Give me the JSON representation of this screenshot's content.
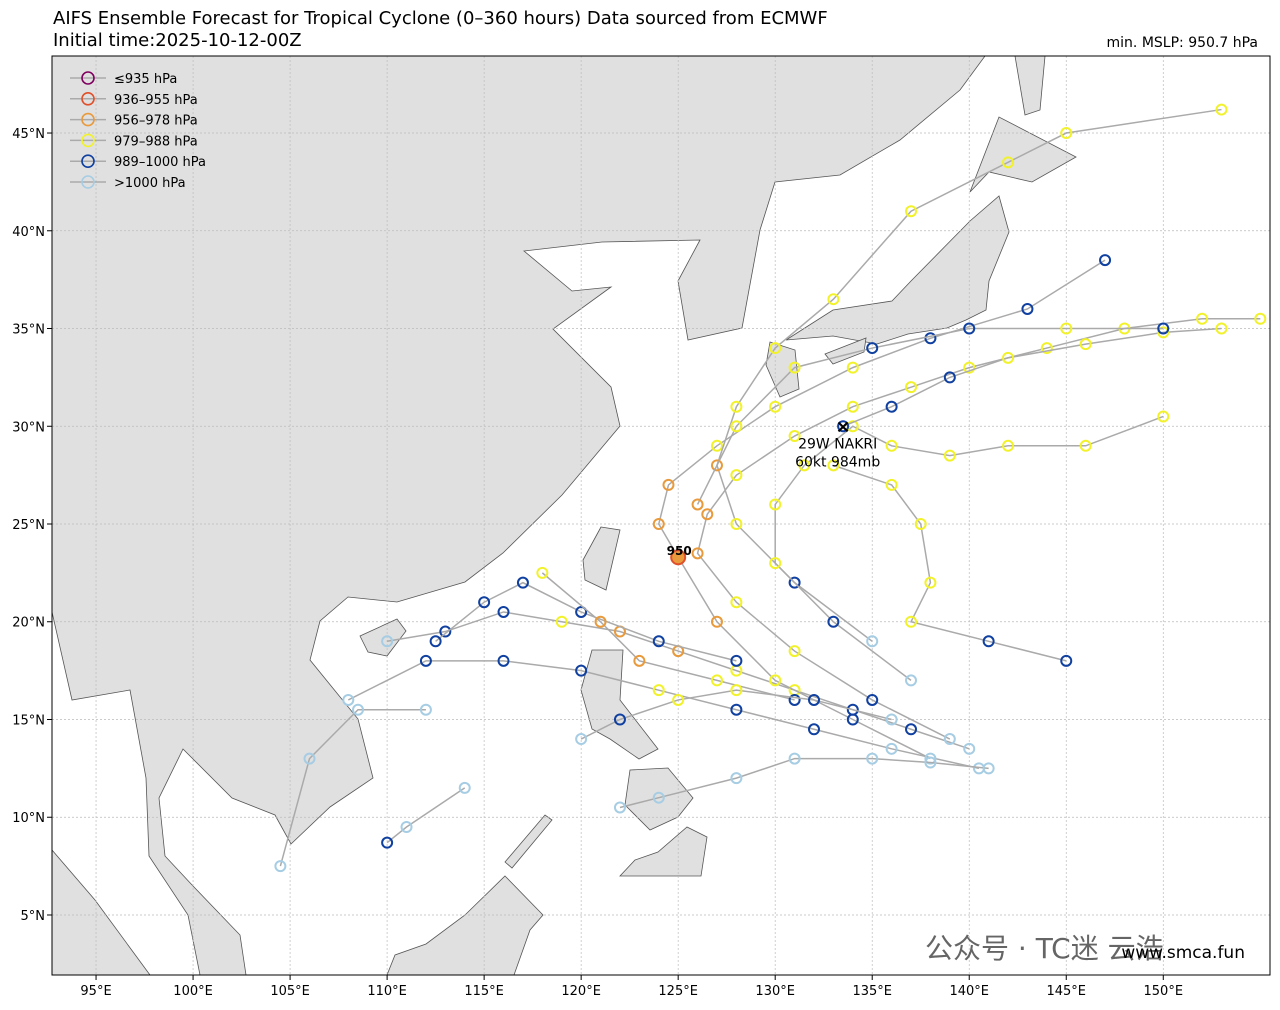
{
  "chart_data": {
    "type": "track",
    "title": "AIFS Ensemble Forecast for Tropical Cyclone (0–360 hours) Data sourced from ECMWF",
    "subtitle": "Initial time:2025-10-12-00Z",
    "min_mslp": "min. MSLP: 950.7 hPa",
    "xlim": [
      92.73,
      155.5
    ],
    "ylim": [
      1.93,
      48.94
    ],
    "xticks": [
      {
        "value": 95,
        "label": "95°E"
      },
      {
        "value": 100,
        "label": "100°E"
      },
      {
        "value": 105,
        "label": "105°E"
      },
      {
        "value": 110,
        "label": "110°E"
      },
      {
        "value": 115,
        "label": "115°E"
      },
      {
        "value": 120,
        "label": "120°E"
      },
      {
        "value": 125,
        "label": "125°E"
      },
      {
        "value": 130,
        "label": "130°E"
      },
      {
        "value": 135,
        "label": "135°E"
      },
      {
        "value": 140,
        "label": "140°E"
      },
      {
        "value": 145,
        "label": "145°E"
      },
      {
        "value": 150,
        "label": "150°E"
      }
    ],
    "yticks": [
      {
        "value": 5,
        "label": "5°N"
      },
      {
        "value": 10,
        "label": "10°N"
      },
      {
        "value": 15,
        "label": "15°N"
      },
      {
        "value": 20,
        "label": "20°N"
      },
      {
        "value": 25,
        "label": "25°N"
      },
      {
        "value": 30,
        "label": "30°N"
      },
      {
        "value": 35,
        "label": "35°N"
      },
      {
        "value": 40,
        "label": "40°N"
      },
      {
        "value": 45,
        "label": "45°N"
      }
    ],
    "grid": true,
    "legend": [
      {
        "label": "≤935 hPa",
        "color": "#800060"
      },
      {
        "label": "936–955 hPa",
        "color": "#e0502a"
      },
      {
        "label": "956–978 hPa",
        "color": "#e89a3c"
      },
      {
        "label": "979–988 hPa",
        "color": "#f2f22a"
      },
      {
        "label": "989–1000 hPa",
        "color": "#1040a0"
      },
      {
        "label": ">1000 hPa",
        "color": "#a6cde3"
      }
    ],
    "tracks": [
      {
        "lon": [
          140,
          137,
          134,
          131,
          128,
          125,
          122,
          119,
          116,
          113,
          110
        ],
        "lat": [
          13.5,
          14.5,
          15.5,
          16.5,
          17.5,
          18.5,
          19.5,
          20,
          20.5,
          19.5,
          19
        ],
        "levels": [
          5,
          4,
          4,
          3,
          3,
          2,
          2,
          3,
          4,
          4,
          5
        ]
      },
      {
        "lon": [
          139,
          135,
          131,
          128,
          126,
          126.5,
          128,
          131,
          134,
          137,
          140,
          144,
          148,
          152,
          155
        ],
        "lat": [
          14,
          16,
          18.5,
          21,
          23.5,
          25.5,
          27.5,
          29.5,
          31,
          32,
          33,
          34,
          35,
          35.5,
          35.5
        ],
        "levels": [
          5,
          4,
          3,
          3,
          2,
          2,
          3,
          3,
          3,
          3,
          3,
          3,
          3,
          3,
          3
        ]
      },
      {
        "lon": [
          140.5,
          136,
          132,
          128,
          124,
          120,
          116,
          112,
          108
        ],
        "lat": [
          12.5,
          13.5,
          14.5,
          15.5,
          16.5,
          17.5,
          18,
          18,
          16
        ],
        "levels": [
          5,
          5,
          4,
          4,
          3,
          4,
          4,
          4,
          5
        ]
      },
      {
        "lon": [
          138,
          134,
          130,
          127,
          125,
          124,
          124.5,
          127,
          130,
          134,
          138,
          143,
          147
        ],
        "lat": [
          13,
          15,
          17,
          20,
          23.3,
          25,
          27,
          29,
          31,
          33,
          34.5,
          36,
          38.5
        ],
        "levels": [
          5,
          4,
          3,
          2,
          1,
          2,
          2,
          3,
          3,
          3,
          4,
          4,
          4
        ]
      },
      {
        "lon": [
          135,
          131,
          128,
          127,
          128,
          130,
          133,
          137,
          142,
          145,
          153
        ],
        "lat": [
          19,
          22,
          25,
          28,
          31,
          34,
          36.5,
          41,
          43.5,
          45,
          46.2
        ],
        "levels": [
          5,
          4,
          3,
          2,
          3,
          3,
          3,
          3,
          3,
          3,
          3
        ]
      },
      {
        "lon": [
          137,
          133,
          130,
          130,
          131.5,
          134,
          136,
          139,
          142,
          146,
          150
        ],
        "lat": [
          17,
          20,
          23,
          26,
          28,
          30,
          29,
          28.5,
          29,
          29,
          30.5
        ],
        "levels": [
          5,
          4,
          3,
          3,
          3,
          3,
          3,
          3,
          3,
          3,
          3
        ]
      },
      {
        "lon": [
          133,
          136,
          137.5,
          138,
          137,
          141,
          145
        ],
        "lat": [
          28,
          27,
          25,
          22,
          20,
          19,
          18
        ],
        "levels": [
          3,
          3,
          3,
          3,
          3,
          4,
          4
        ]
      },
      {
        "lon": [
          133.5,
          136,
          139,
          142,
          146,
          150,
          153
        ],
        "lat": [
          30,
          31,
          32.5,
          33.5,
          34.2,
          34.8,
          35
        ],
        "levels": [
          4,
          4,
          4,
          3,
          3,
          3,
          3
        ]
      },
      {
        "lon": [
          141,
          138,
          135,
          131,
          128,
          124,
          122
        ],
        "lat": [
          12.5,
          12.8,
          13,
          13,
          12,
          11,
          10.5
        ],
        "levels": [
          5,
          5,
          5,
          5,
          5,
          5,
          5
        ]
      },
      {
        "lon": [
          128,
          124,
          120,
          117,
          115,
          112.5
        ],
        "lat": [
          18,
          19,
          20.5,
          22,
          21,
          19
        ],
        "levels": [
          4,
          4,
          4,
          4,
          4,
          4
        ]
      },
      {
        "lon": [
          126,
          128,
          131,
          135,
          140,
          145,
          150
        ],
        "lat": [
          26,
          30,
          33,
          34,
          35,
          35,
          35
        ],
        "levels": [
          2,
          3,
          3,
          4,
          4,
          3,
          4
        ]
      },
      {
        "lon": [
          112,
          108.5,
          106,
          104.5
        ],
        "lat": [
          15.5,
          15.5,
          13,
          7.5
        ],
        "levels": [
          5,
          5,
          5,
          5
        ]
      },
      {
        "lon": [
          114,
          111,
          110
        ],
        "lat": [
          11.5,
          9.5,
          8.7
        ],
        "levels": [
          5,
          5,
          4
        ]
      },
      {
        "lon": [
          131,
          127,
          123,
          121,
          118
        ],
        "lat": [
          16,
          17,
          18,
          20,
          22.5
        ],
        "levels": [
          4,
          3,
          2,
          2,
          3
        ]
      },
      {
        "lon": [
          136,
          132,
          128,
          125,
          122,
          120
        ],
        "lat": [
          15,
          16,
          16.5,
          16,
          15,
          14
        ],
        "levels": [
          5,
          4,
          3,
          3,
          4,
          5
        ]
      }
    ],
    "storm": {
      "name": "29W NAKRI",
      "info": "60kt 984mb",
      "lon": 133.5,
      "lat": 30.0
    },
    "min_label": {
      "text": "950",
      "lon": 125.0,
      "lat": 23.3
    },
    "watermark": "公众号 · TC迷 云浩",
    "source_url": "www.smca.fun"
  }
}
